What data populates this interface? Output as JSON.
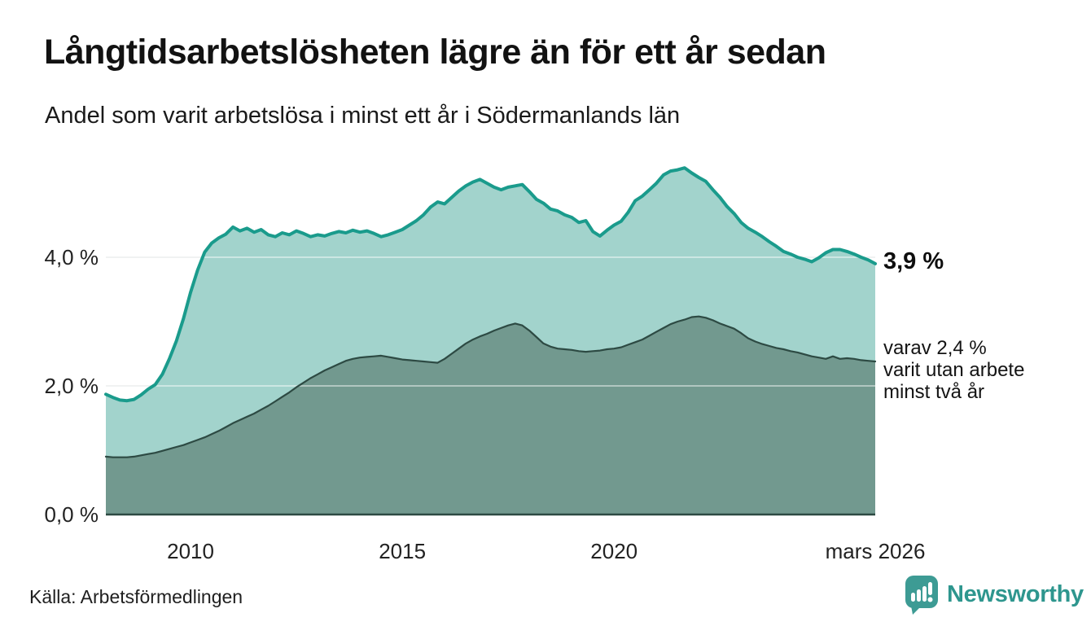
{
  "chart_data": {
    "type": "area",
    "title": "Långtidsarbetslösheten lägre än för ett år sedan",
    "subtitle": "Andel som varit arbetslösa i minst ett år i Södermanlands län",
    "unit": "%",
    "xlim": [
      2008.0,
      2026.167
    ],
    "ylim": [
      0,
      5.6
    ],
    "grid_on": true,
    "grid_values": [
      2,
      4
    ],
    "yticks": [
      {
        "value": 0,
        "label": "0,0 %"
      },
      {
        "value": 2,
        "label": "2,0 %"
      },
      {
        "value": 4,
        "label": "4,0 %"
      }
    ],
    "xticks": [
      {
        "value": 2010,
        "label": "2010"
      },
      {
        "value": 2015,
        "label": "2015"
      },
      {
        "value": 2020,
        "label": "2020"
      },
      {
        "value": 2026.167,
        "label": "mars 2026"
      }
    ],
    "series": [
      {
        "name": "Andel som varit arbetslösa minst ett år",
        "line_color": "#1a9b8c",
        "fill_color": "#a2d3cc",
        "line_width": 4,
        "latest_value": 3.9,
        "values": [
          1.87,
          1.82,
          1.78,
          1.77,
          1.79,
          1.86,
          1.95,
          2.02,
          2.18,
          2.42,
          2.7,
          3.05,
          3.45,
          3.8,
          4.08,
          4.22,
          4.3,
          4.36,
          4.47,
          4.41,
          4.45,
          4.39,
          4.43,
          4.35,
          4.32,
          4.38,
          4.35,
          4.41,
          4.37,
          4.32,
          4.35,
          4.33,
          4.37,
          4.4,
          4.38,
          4.42,
          4.39,
          4.41,
          4.37,
          4.32,
          4.35,
          4.39,
          4.43,
          4.5,
          4.57,
          4.66,
          4.78,
          4.86,
          4.83,
          4.93,
          5.03,
          5.11,
          5.17,
          5.21,
          5.15,
          5.09,
          5.05,
          5.09,
          5.11,
          5.13,
          5.02,
          4.9,
          4.84,
          4.75,
          4.72,
          4.66,
          4.62,
          4.54,
          4.57,
          4.4,
          4.33,
          4.42,
          4.5,
          4.56,
          4.7,
          4.88,
          4.95,
          5.05,
          5.15,
          5.28,
          5.34,
          5.36,
          5.39,
          5.31,
          5.24,
          5.18,
          5.05,
          4.93,
          4.79,
          4.68,
          4.54,
          4.45,
          4.39,
          4.32,
          4.24,
          4.17,
          4.09,
          4.05,
          4.0,
          3.97,
          3.93,
          3.99,
          4.07,
          4.12,
          4.12,
          4.09,
          4.05,
          4.0,
          3.96,
          3.9
        ]
      },
      {
        "name": "varav utan arbete minst två år",
        "line_color": "#2d4a43",
        "fill_color": "#72998f",
        "line_width": 2.2,
        "latest_value": 2.4,
        "values": [
          0.9,
          0.89,
          0.89,
          0.89,
          0.9,
          0.92,
          0.94,
          0.96,
          0.99,
          1.02,
          1.05,
          1.08,
          1.12,
          1.16,
          1.2,
          1.25,
          1.3,
          1.36,
          1.42,
          1.47,
          1.52,
          1.57,
          1.63,
          1.69,
          1.76,
          1.83,
          1.9,
          1.98,
          2.05,
          2.12,
          2.18,
          2.24,
          2.29,
          2.34,
          2.39,
          2.42,
          2.44,
          2.45,
          2.46,
          2.47,
          2.45,
          2.43,
          2.41,
          2.4,
          2.39,
          2.38,
          2.37,
          2.36,
          2.42,
          2.5,
          2.58,
          2.66,
          2.72,
          2.77,
          2.81,
          2.86,
          2.9,
          2.94,
          2.97,
          2.94,
          2.86,
          2.76,
          2.66,
          2.61,
          2.58,
          2.57,
          2.56,
          2.54,
          2.53,
          2.54,
          2.55,
          2.57,
          2.58,
          2.6,
          2.64,
          2.68,
          2.72,
          2.78,
          2.84,
          2.9,
          2.96,
          3.0,
          3.03,
          3.07,
          3.08,
          3.06,
          3.02,
          2.97,
          2.93,
          2.89,
          2.82,
          2.74,
          2.69,
          2.65,
          2.62,
          2.59,
          2.57,
          2.54,
          2.52,
          2.49,
          2.46,
          2.44,
          2.42,
          2.46,
          2.42,
          2.43,
          2.42,
          2.4,
          2.39,
          2.38
        ]
      }
    ],
    "annotations": {
      "value_label": "3,9 %",
      "note": "varav 2,4 %\nvarit utan arbete\nminst två år"
    },
    "colors": {
      "gridline": "#e3e7e7",
      "gridline_over_fill": "rgba(255,255,255,0.45)",
      "baseline": "#2d4a43"
    }
  },
  "footer": {
    "source": "Källa: Arbetsförmedlingen",
    "logo_text": "Newsworthy",
    "logo_color": "#3d9b94"
  }
}
